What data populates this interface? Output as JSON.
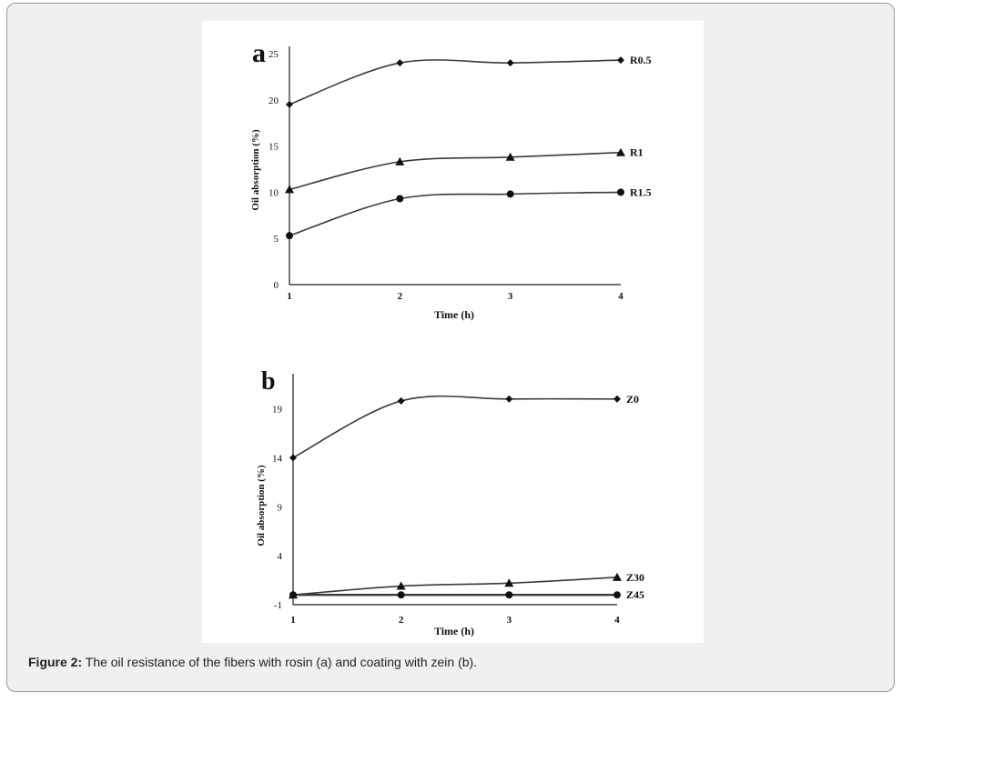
{
  "caption": {
    "label": "Figure 2:",
    "text": " The oil resistance of the fibers with rosin (a) and coating with zein (b)."
  },
  "colors": {
    "card_bg": "#f0f0f0",
    "line": "#3a3a3a",
    "axis": "#1a1a1a"
  },
  "chart_data": [
    {
      "type": "line",
      "panel_label": "a",
      "xlabel": "Time (h)",
      "ylabel": "Oil absorption (%)",
      "x": [
        1,
        2,
        3,
        4
      ],
      "x_ticks": [
        "1",
        "2",
        "3",
        "4"
      ],
      "y_ticks": [
        "0",
        "5",
        "10",
        "15",
        "20",
        "25"
      ],
      "ylim": [
        0,
        25
      ],
      "xlim": [
        1,
        4
      ],
      "grid": false,
      "series": [
        {
          "name": "R0.5",
          "marker": "diamond",
          "values": [
            19.5,
            24.0,
            24.0,
            24.3
          ]
        },
        {
          "name": "R1",
          "marker": "triangle",
          "values": [
            10.3,
            13.3,
            13.8,
            14.3
          ]
        },
        {
          "name": "R1.5",
          "marker": "circle",
          "values": [
            5.3,
            9.3,
            9.8,
            10.0
          ]
        }
      ]
    },
    {
      "type": "line",
      "panel_label": "b",
      "xlabel": "Time (h)",
      "ylabel": "Oil absorption (%)",
      "x": [
        1,
        2,
        3,
        4
      ],
      "x_ticks": [
        "1",
        "2",
        "3",
        "4"
      ],
      "y_ticks": [
        "-1",
        "4",
        "9",
        "14",
        "19"
      ],
      "ylim": [
        -1,
        21
      ],
      "xlim": [
        1,
        4
      ],
      "grid": false,
      "series": [
        {
          "name": "Z0",
          "marker": "diamond",
          "values": [
            14.0,
            19.8,
            20.0,
            20.0
          ]
        },
        {
          "name": "Z30",
          "marker": "triangle",
          "values": [
            0.0,
            0.9,
            1.2,
            1.8
          ]
        },
        {
          "name": "Z45",
          "marker": "circle",
          "values": [
            0.0,
            0.0,
            0.0,
            0.0
          ]
        }
      ]
    }
  ]
}
